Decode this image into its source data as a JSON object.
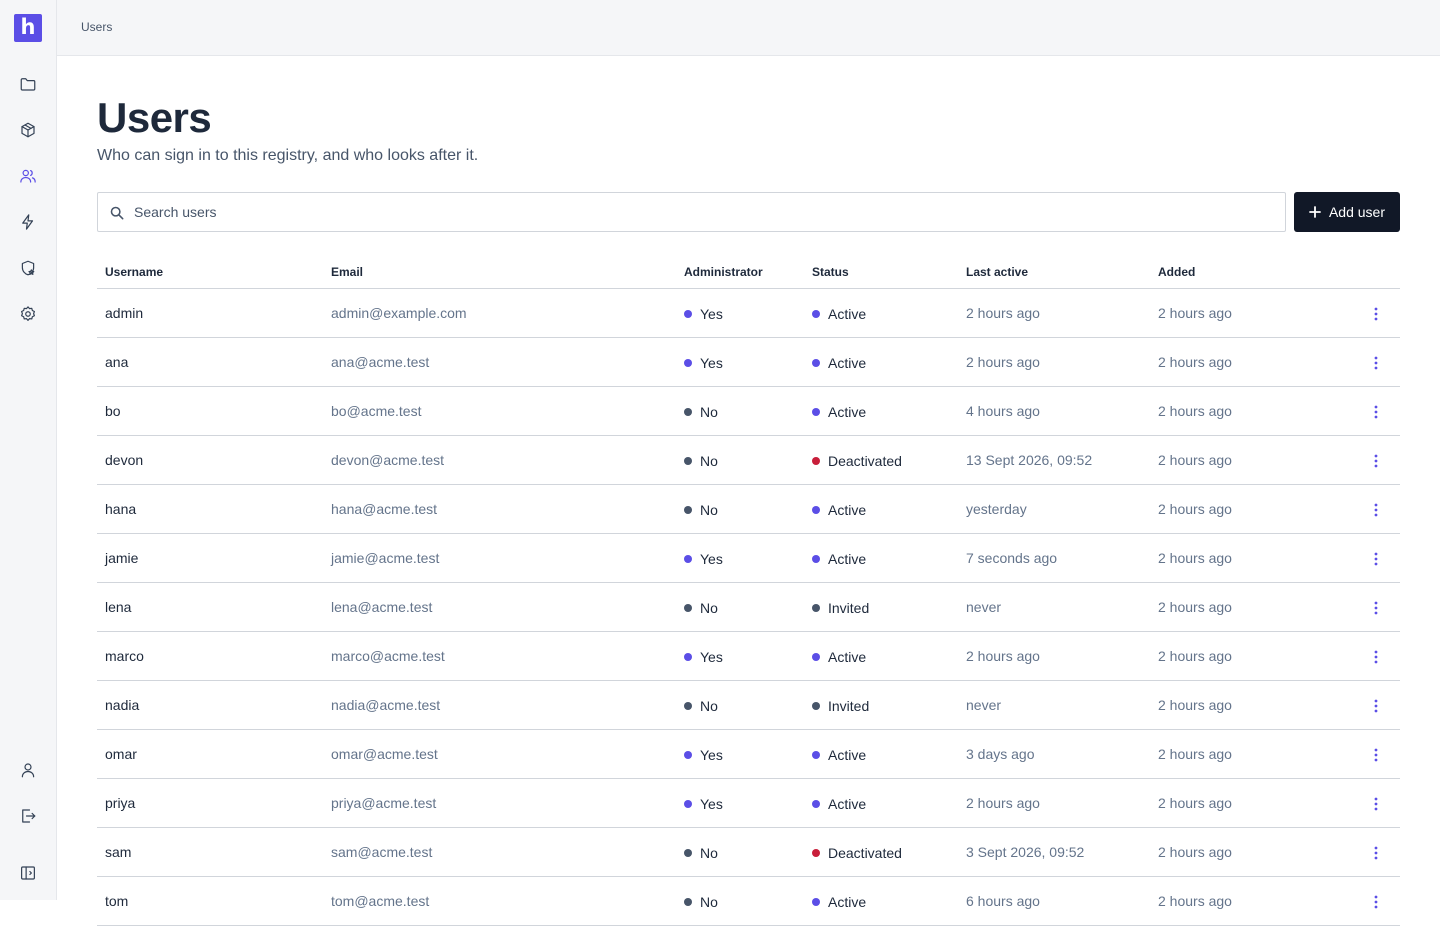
{
  "app": {
    "logo_letter": "h"
  },
  "colors": {
    "accent": "#5b4ee6",
    "neutral_dot": "#475569",
    "danger_dot": "#c81e3a",
    "button_bg": "#111827"
  },
  "breadcrumb": {
    "current": "Users"
  },
  "header": {
    "title": "Users",
    "subtitle": "Who can sign in to this registry, and who looks after it."
  },
  "search": {
    "placeholder": "Search users",
    "value": ""
  },
  "toolbar": {
    "add_label": "Add user"
  },
  "sidebar": {
    "items": [
      {
        "name": "folder-icon",
        "active": false
      },
      {
        "name": "package-icon",
        "active": false
      },
      {
        "name": "users-icon",
        "active": true
      },
      {
        "name": "lightning-icon",
        "active": false
      },
      {
        "name": "shield-star-icon",
        "active": false
      },
      {
        "name": "gear-icon",
        "active": false
      }
    ],
    "bottom_items": [
      {
        "name": "user-icon"
      },
      {
        "name": "logout-icon"
      },
      {
        "name": "sidebar-toggle-icon"
      }
    ]
  },
  "table": {
    "columns": [
      "Username",
      "Email",
      "Administrator",
      "Status",
      "Last active",
      "Added"
    ],
    "rows": [
      {
        "username": "admin",
        "email": "admin@example.com",
        "admin": "Yes",
        "status": "Active",
        "last_active": "2 hours ago",
        "added": "2 hours ago"
      },
      {
        "username": "ana",
        "email": "ana@acme.test",
        "admin": "Yes",
        "status": "Active",
        "last_active": "2 hours ago",
        "added": "2 hours ago"
      },
      {
        "username": "bo",
        "email": "bo@acme.test",
        "admin": "No",
        "status": "Active",
        "last_active": "4 hours ago",
        "added": "2 hours ago"
      },
      {
        "username": "devon",
        "email": "devon@acme.test",
        "admin": "No",
        "status": "Deactivated",
        "last_active": "13 Sept 2026, 09:52",
        "added": "2 hours ago"
      },
      {
        "username": "hana",
        "email": "hana@acme.test",
        "admin": "No",
        "status": "Active",
        "last_active": "yesterday",
        "added": "2 hours ago"
      },
      {
        "username": "jamie",
        "email": "jamie@acme.test",
        "admin": "Yes",
        "status": "Active",
        "last_active": "7 seconds ago",
        "added": "2 hours ago"
      },
      {
        "username": "lena",
        "email": "lena@acme.test",
        "admin": "No",
        "status": "Invited",
        "last_active": "never",
        "added": "2 hours ago"
      },
      {
        "username": "marco",
        "email": "marco@acme.test",
        "admin": "Yes",
        "status": "Active",
        "last_active": "2 hours ago",
        "added": "2 hours ago"
      },
      {
        "username": "nadia",
        "email": "nadia@acme.test",
        "admin": "No",
        "status": "Invited",
        "last_active": "never",
        "added": "2 hours ago"
      },
      {
        "username": "omar",
        "email": "omar@acme.test",
        "admin": "Yes",
        "status": "Active",
        "last_active": "3 days ago",
        "added": "2 hours ago"
      },
      {
        "username": "priya",
        "email": "priya@acme.test",
        "admin": "Yes",
        "status": "Active",
        "last_active": "2 hours ago",
        "added": "2 hours ago"
      },
      {
        "username": "sam",
        "email": "sam@acme.test",
        "admin": "No",
        "status": "Deactivated",
        "last_active": "3 Sept 2026, 09:52",
        "added": "2 hours ago"
      },
      {
        "username": "tom",
        "email": "tom@acme.test",
        "admin": "No",
        "status": "Active",
        "last_active": "6 hours ago",
        "added": "2 hours ago"
      }
    ]
  }
}
